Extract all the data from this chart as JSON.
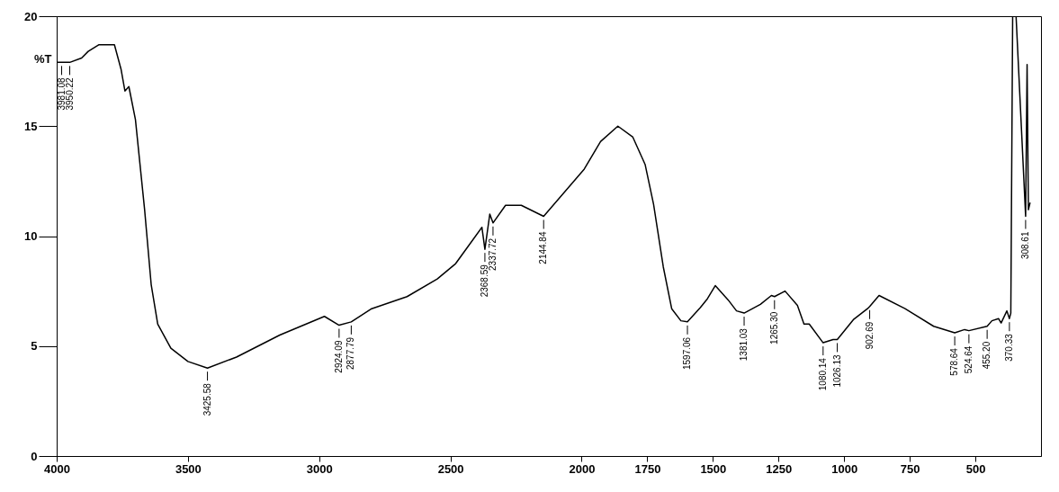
{
  "chart_data": {
    "type": "line",
    "ylabel": "%T",
    "xlim": [
      4000,
      250
    ],
    "xticks": [
      4000,
      3500,
      3000,
      2500,
      2000,
      1750,
      1500,
      1250,
      1000,
      750,
      500
    ],
    "ylim": [
      0,
      20
    ],
    "yticks": [
      0,
      5,
      10,
      15,
      20
    ],
    "grid": false,
    "marker": "none",
    "x": [
      4000,
      3981.08,
      3950.22,
      3905,
      3880,
      3840,
      3780,
      3755,
      3740,
      3725,
      3700,
      3665,
      3640,
      3615,
      3565,
      3500,
      3425.58,
      3315,
      3150,
      2980,
      2924.09,
      2877.79,
      2800,
      2665,
      2550,
      2480,
      2380,
      2368.59,
      2350,
      2337.72,
      2290,
      2230,
      2144.84,
      1990,
      1928,
      1862,
      1805,
      1758,
      1726,
      1689,
      1657,
      1622,
      1597.06,
      1548,
      1521,
      1491,
      1442,
      1410,
      1381.03,
      1319,
      1277,
      1265.3,
      1225,
      1178,
      1153,
      1133,
      1080.14,
      1042,
      1026.13,
      965,
      911,
      902.69,
      867,
      768,
      659,
      578.64,
      541,
      524.64,
      455.2,
      437,
      412,
      402,
      380,
      370.33,
      365,
      358,
      345,
      325,
      308.61,
      303,
      298,
      292
    ],
    "series": [
      {
        "color": "#000000",
        "values": [
          17.9,
          17.9,
          17.9,
          18.1,
          18.4,
          18.7,
          18.7,
          17.6,
          16.6,
          16.8,
          15.3,
          11.2,
          7.8,
          6.0,
          4.9,
          4.3,
          4.0,
          4.5,
          5.5,
          6.35,
          5.95,
          6.1,
          6.7,
          7.25,
          8.05,
          8.75,
          10.4,
          9.4,
          11.0,
          10.6,
          11.4,
          11.4,
          10.9,
          13.05,
          14.3,
          15.0,
          14.5,
          13.25,
          11.45,
          8.6,
          6.7,
          6.15,
          6.1,
          6.75,
          7.15,
          7.75,
          7.1,
          6.6,
          6.5,
          6.9,
          7.3,
          7.25,
          7.5,
          6.85,
          6.0,
          6.0,
          5.15,
          5.3,
          5.3,
          6.2,
          6.7,
          6.8,
          7.3,
          6.7,
          5.9,
          5.6,
          5.75,
          5.7,
          5.9,
          6.15,
          6.25,
          6.05,
          6.6,
          6.25,
          6.5,
          20,
          20,
          15,
          10.9,
          17.8,
          11.2,
          11.5
        ]
      }
    ],
    "annotations": [
      {
        "text": "3981.08",
        "x": 3981.08,
        "y": 17.9
      },
      {
        "text": "3950.22",
        "x": 3950.22,
        "y": 17.9
      },
      {
        "text": "3425.58",
        "x": 3425.58,
        "y": 4.0
      },
      {
        "text": "2924.09",
        "x": 2924.09,
        "y": 5.95
      },
      {
        "text": "2877.79",
        "x": 2877.79,
        "y": 6.1
      },
      {
        "text": "2368.59",
        "x": 2368.59,
        "y": 9.4
      },
      {
        "text": "2337.72",
        "x": 2337.72,
        "y": 10.6
      },
      {
        "text": "2144.84",
        "x": 2144.84,
        "y": 10.9
      },
      {
        "text": "1597.06",
        "x": 1597.06,
        "y": 6.1
      },
      {
        "text": "1381.03",
        "x": 1381.03,
        "y": 6.5
      },
      {
        "text": "1265.30",
        "x": 1265.3,
        "y": 7.25
      },
      {
        "text": "1080.14",
        "x": 1080.14,
        "y": 5.15
      },
      {
        "text": "1026.13",
        "x": 1026.13,
        "y": 5.3
      },
      {
        "text": "902.69",
        "x": 902.69,
        "y": 6.8
      },
      {
        "text": "578.64",
        "x": 578.64,
        "y": 5.6
      },
      {
        "text": "524.64",
        "x": 524.64,
        "y": 5.7
      },
      {
        "text": "455.20",
        "x": 455.2,
        "y": 5.9
      },
      {
        "text": "370.33",
        "x": 370.33,
        "y": 6.25
      },
      {
        "text": "308.61",
        "x": 308.61,
        "y": 10.9
      }
    ]
  }
}
